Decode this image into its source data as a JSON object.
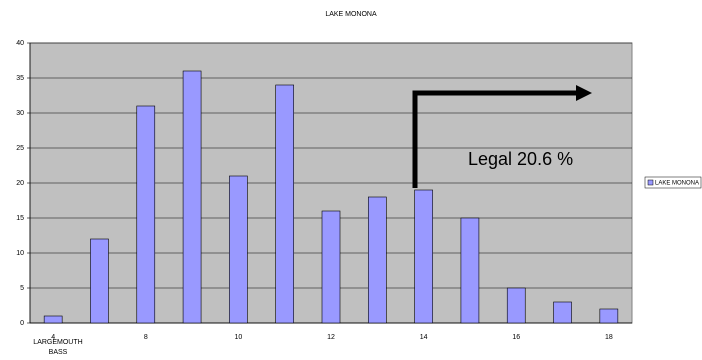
{
  "chart_data": {
    "type": "bar",
    "title": "LAKE MONONA",
    "x_label": "LARGEMOUTH BASS",
    "categories": [
      "4",
      null,
      "8",
      null,
      "10",
      null,
      "12",
      null,
      "14",
      null,
      "16",
      null,
      "18"
    ],
    "series": [
      {
        "name": "LAKE MONONA",
        "color": "#9999ff",
        "values": [
          1,
          12,
          31,
          36,
          21,
          34,
          16,
          18,
          19,
          15,
          5,
          3,
          2
        ]
      }
    ],
    "ylim": [
      0,
      40
    ],
    "yticks": [
      0,
      5,
      10,
      15,
      20,
      25,
      30,
      35,
      40
    ],
    "grid": true,
    "legend": "right",
    "annotation": "Legal 20.6 %"
  }
}
